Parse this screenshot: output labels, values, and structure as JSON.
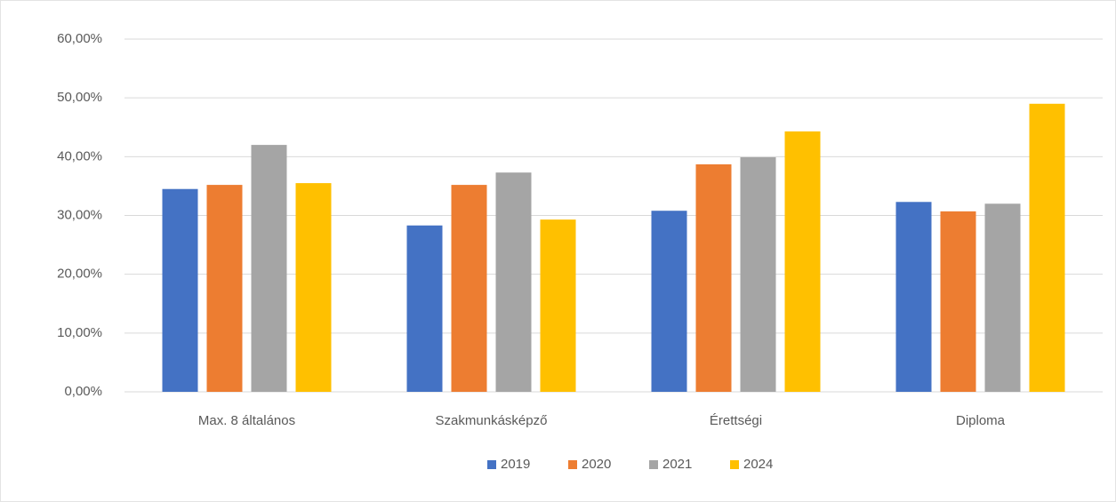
{
  "chart_data": {
    "type": "bar",
    "categories": [
      "Max. 8 általános",
      "Szakmunkásképző",
      "Érettségi",
      "Diploma"
    ],
    "series": [
      {
        "name": "2019",
        "color": "#4472c4",
        "values": [
          34.5,
          28.3,
          30.8,
          32.3
        ]
      },
      {
        "name": "2020",
        "color": "#ed7d31",
        "values": [
          35.2,
          35.2,
          38.7,
          30.7
        ]
      },
      {
        "name": "2021",
        "color": "#a5a5a5",
        "values": [
          42.0,
          37.3,
          39.9,
          32.0
        ]
      },
      {
        "name": "2024",
        "color": "#ffc000",
        "values": [
          35.5,
          29.3,
          44.3,
          49.0
        ]
      }
    ],
    "ylim": [
      0,
      60
    ],
    "yticks": [
      {
        "value": 0,
        "label": "0,00%"
      },
      {
        "value": 10,
        "label": "10,00%"
      },
      {
        "value": 20,
        "label": "20,00%"
      },
      {
        "value": 30,
        "label": "30,00%"
      },
      {
        "value": 40,
        "label": "40,00%"
      },
      {
        "value": 50,
        "label": "50,00%"
      },
      {
        "value": 60,
        "label": "60,00%"
      }
    ],
    "grid": true,
    "legend": "bottom"
  }
}
